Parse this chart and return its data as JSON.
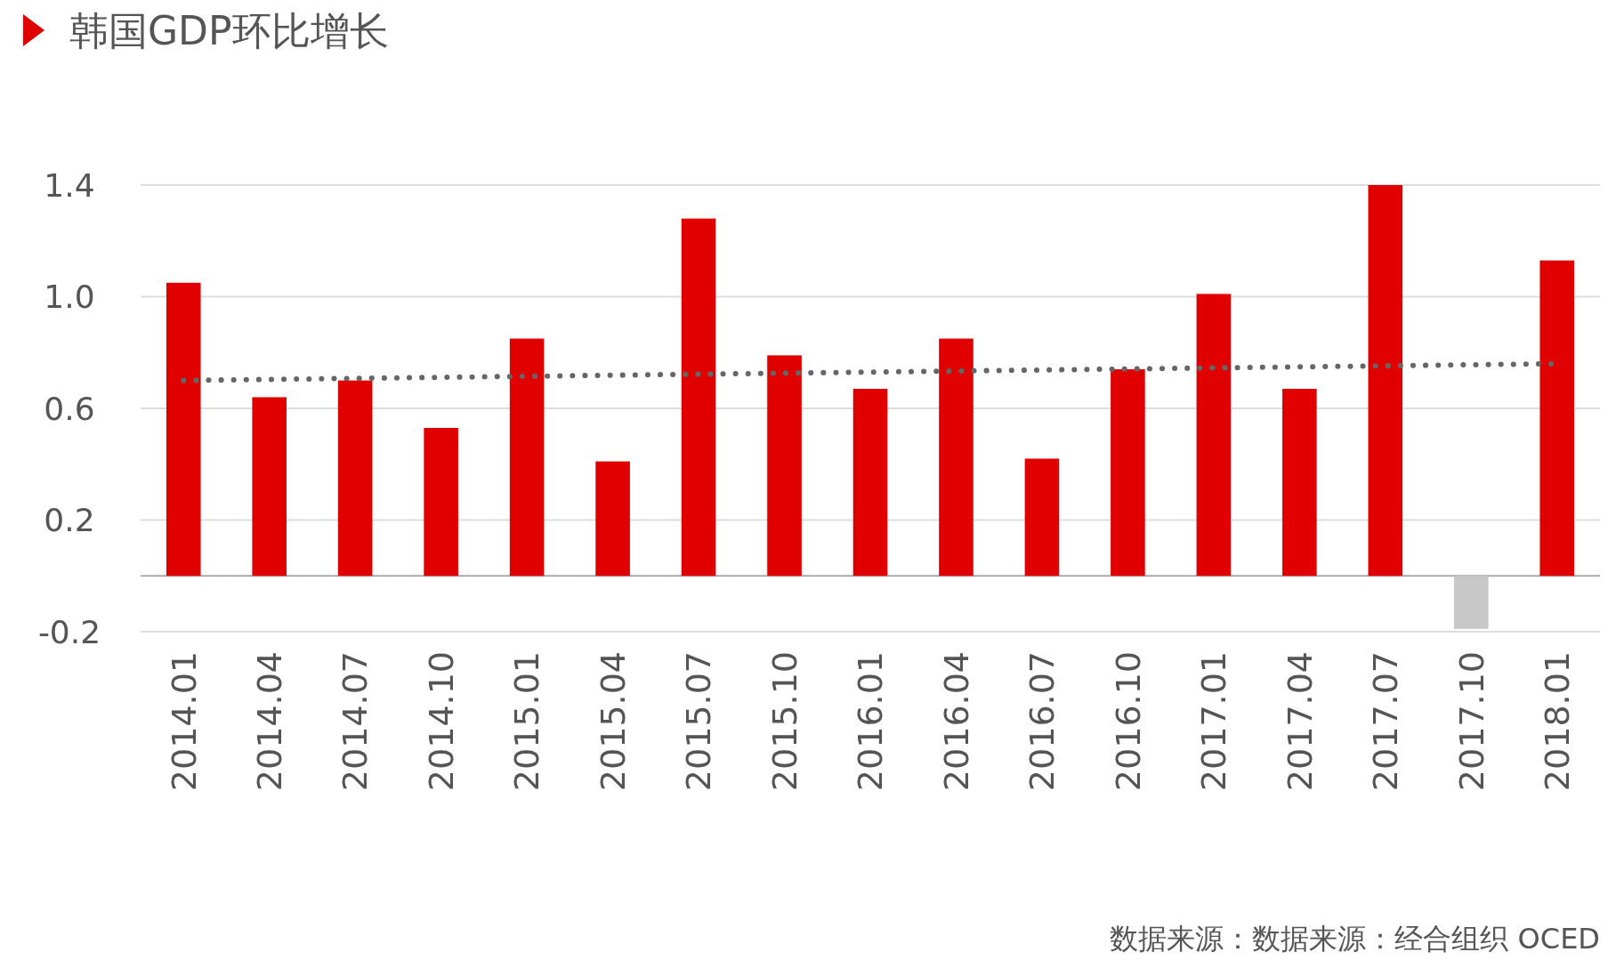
{
  "chart_data": {
    "type": "bar",
    "title": "韩国GDP环比增长",
    "categories": [
      "2014.01",
      "2014.04",
      "2014.07",
      "2014.10",
      "2015.01",
      "2015.04",
      "2015.07",
      "2015.10",
      "2016.01",
      "2016.04",
      "2016.07",
      "2016.10",
      "2017.01",
      "2017.04",
      "2017.07",
      "2017.10",
      "2018.01"
    ],
    "series": [
      {
        "colors": [
          "#e00000",
          "#e00000",
          "#e00000",
          "#e00000",
          "#e00000",
          "#e00000",
          "#e00000",
          "#e00000",
          "#e00000",
          "#e00000",
          "#e00000",
          "#e00000",
          "#e00000",
          "#e00000",
          "#e00000",
          "#c8c8c8",
          "#e00000"
        ],
        "values": [
          1.05,
          0.64,
          0.7,
          0.53,
          0.85,
          0.41,
          1.28,
          0.79,
          0.67,
          0.85,
          0.42,
          0.74,
          1.01,
          0.67,
          1.4,
          -0.19,
          1.13
        ]
      },
      {
        "type": "line",
        "x": [
          "2014.01",
          "2018.01"
        ],
        "values": [
          0.7,
          0.76
        ],
        "color": "#666666",
        "line_style": "dotted"
      }
    ],
    "ylim": [
      -0.2,
      1.4
    ],
    "yticks": [
      {
        "value": -0.2,
        "label": "-0.2"
      },
      {
        "value": 0.2,
        "label": "0.2"
      },
      {
        "value": 0.6,
        "label": "0.6"
      },
      {
        "value": 1,
        "label": "1.0"
      },
      {
        "value": 1.4,
        "label": "1.4"
      }
    ],
    "grid": "y",
    "annotations": [
      "数据来源：数据来源：经合组织 OCED"
    ]
  }
}
